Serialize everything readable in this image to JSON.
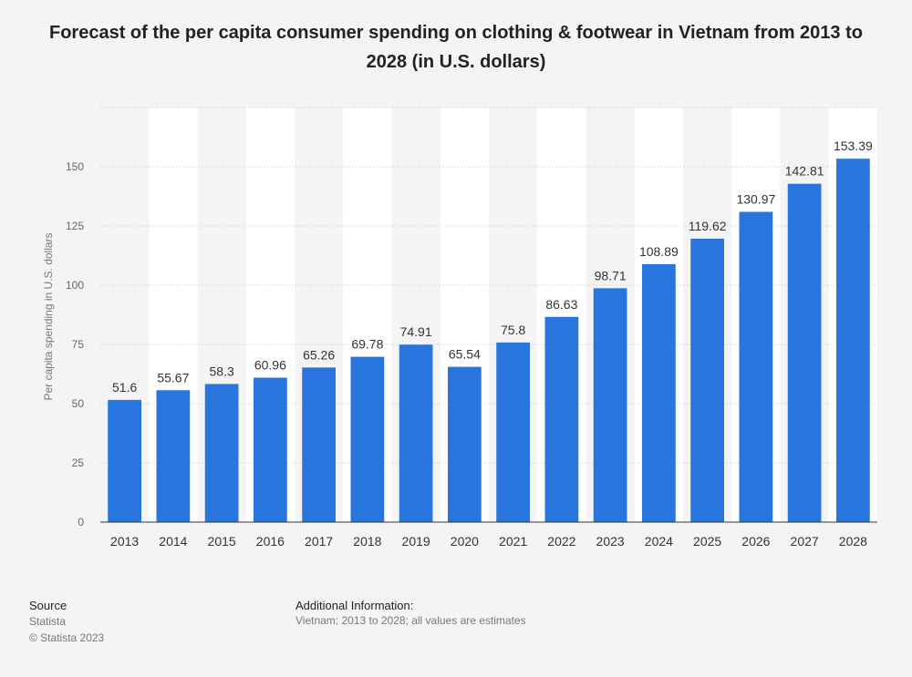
{
  "chart_data": {
    "type": "bar",
    "title": "Forecast of the per capita consumer spending on clothing & footwear in Vietnam from 2013 to 2028 (in U.S. dollars)",
    "categories": [
      "2013",
      "2014",
      "2015",
      "2016",
      "2017",
      "2018",
      "2019",
      "2020",
      "2021",
      "2022",
      "2023",
      "2024",
      "2025",
      "2026",
      "2027",
      "2028"
    ],
    "values": [
      51.6,
      55.67,
      58.3,
      60.96,
      65.26,
      69.78,
      74.91,
      65.54,
      75.8,
      86.63,
      98.71,
      108.89,
      119.62,
      130.97,
      142.81,
      153.39
    ],
    "value_labels": [
      "51.6",
      "55.67",
      "58.3",
      "60.96",
      "65.26",
      "69.78",
      "74.91",
      "65.54",
      "75.8",
      "86.63",
      "98.71",
      "108.89",
      "119.62",
      "130.97",
      "142.81",
      "153.39"
    ],
    "xlabel": "",
    "ylabel": "Per capita spending in U.S. dollars",
    "ylim": [
      0,
      175
    ],
    "yticks": [
      0,
      25,
      50,
      75,
      100,
      125,
      150
    ],
    "grid": true,
    "bar_color": "#2876dd"
  },
  "footer": {
    "source_heading": "Source",
    "source_name": "Statista",
    "copyright": "© Statista 2023",
    "info_heading": "Additional Information:",
    "info_text": "Vietnam; 2013 to 2028; all values are estimates"
  }
}
